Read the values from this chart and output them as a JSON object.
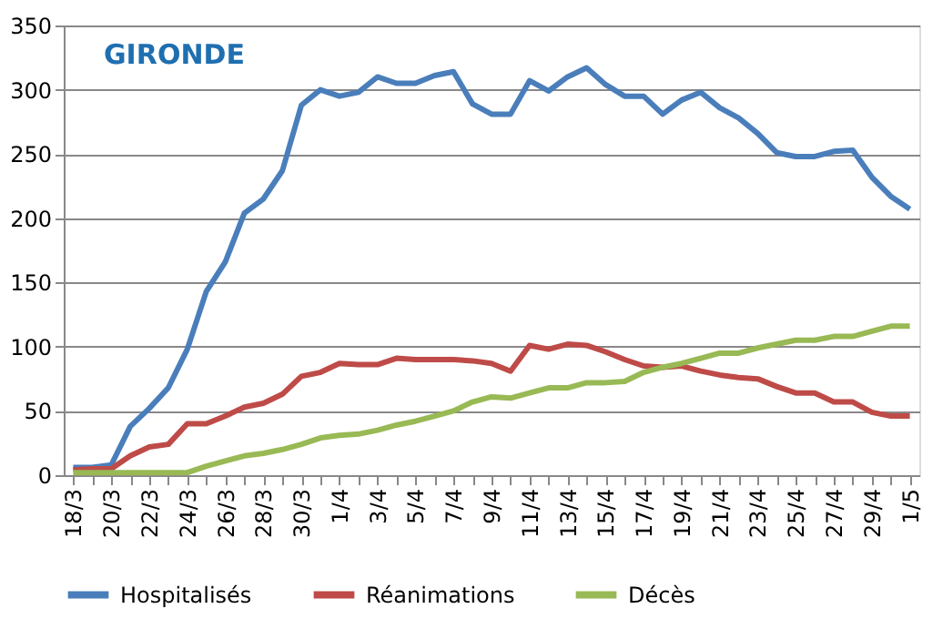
{
  "chart_data": {
    "type": "line",
    "title": "GIRONDE",
    "categories": [
      "18/3",
      null,
      "20/3",
      null,
      "22/3",
      null,
      "24/3",
      null,
      "26/3",
      null,
      "28/3",
      null,
      "30/3",
      null,
      "1/4",
      null,
      "3/4",
      null,
      "5/4",
      null,
      "7/4",
      null,
      "9/4",
      null,
      "11/4",
      null,
      "13/4",
      null,
      "15/4",
      null,
      "17/4",
      null,
      "19/4",
      null,
      "21/4",
      null,
      "23/4",
      null,
      "25/4",
      null,
      "27/4",
      null,
      "29/4",
      null,
      "1/5"
    ],
    "series": [
      {
        "name": "Hospitalisés",
        "color": "#4a7ebb",
        "values": [
          6,
          6,
          8,
          38,
          52,
          68,
          98,
          143,
          166,
          204,
          215,
          237,
          288,
          300,
          295,
          298,
          310,
          305,
          305,
          311,
          314,
          289,
          281,
          281,
          307,
          299,
          310,
          317,
          304,
          295,
          295,
          281,
          292,
          298,
          286,
          278,
          266,
          251,
          248,
          248,
          252,
          253,
          232,
          217,
          207
        ]
      },
      {
        "name": "Réanimations",
        "color": "#be4b48",
        "values": [
          4,
          5,
          5,
          15,
          22,
          24,
          40,
          40,
          46,
          53,
          56,
          63,
          77,
          80,
          87,
          86,
          86,
          91,
          90,
          90,
          90,
          89,
          87,
          81,
          101,
          98,
          102,
          101,
          96,
          90,
          85,
          84,
          85,
          81,
          78,
          76,
          75,
          69,
          64,
          64,
          57,
          57,
          49,
          46,
          46
        ]
      },
      {
        "name": "Décès",
        "color": "#98b954",
        "values": [
          2,
          2,
          2,
          2,
          2,
          2,
          2,
          7,
          11,
          15,
          17,
          20,
          24,
          29,
          31,
          32,
          35,
          39,
          42,
          46,
          50,
          57,
          61,
          60,
          64,
          68,
          68,
          72,
          72,
          73,
          80,
          84,
          87,
          91,
          95,
          95,
          99,
          102,
          105,
          105,
          108,
          108,
          112,
          116,
          116
        ]
      }
    ],
    "ylim": [
      0,
      350
    ],
    "yticks": [
      0,
      50,
      100,
      150,
      200,
      250,
      300,
      350
    ],
    "grid": "y",
    "legend": "bottom",
    "line_style": "solid",
    "marker": "none"
  }
}
